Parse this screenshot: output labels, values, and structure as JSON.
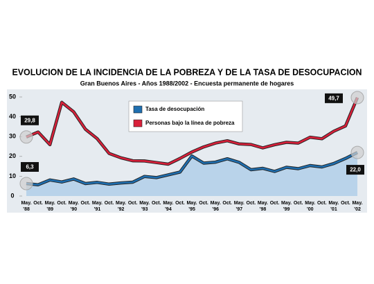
{
  "chart_data": {
    "type": "line",
    "title": "EVOLUCION DE LA INCIDENCIA DE LA POBREZA Y DE LA TASA DE DESOCUPACION",
    "subtitle": "Gran Buenos Aires - Años 1988/2002 - Encuesta permanente de hogares",
    "categories": [
      "May.",
      "Oct.",
      "May.",
      "Oct.",
      "May.",
      "Oct.",
      "May.",
      "Oct.",
      "May.",
      "Oct.",
      "May.",
      "Oct.",
      "May.",
      "Oct.",
      "May.",
      "Oct.",
      "May.",
      "Oct.",
      "May.",
      "Oct.",
      "May.",
      "Oct.",
      "May.",
      "Oct.",
      "May.",
      "Oct.",
      "May.",
      "Oct.",
      "May."
    ],
    "year_labels": [
      "’88",
      null,
      "’89",
      null,
      "’90",
      null,
      "’91",
      null,
      "’92",
      null,
      "’93",
      null,
      "’94",
      null,
      "’95",
      null,
      "’96",
      null,
      "’97",
      null,
      "’98",
      null,
      "’99",
      null,
      "’00",
      null,
      "’01",
      null,
      "’02"
    ],
    "series": [
      {
        "name": "Tasa de desocupación",
        "color": "#1f6fb0",
        "fill": "#b9d3ea",
        "values": [
          6.3,
          5.7,
          8.1,
          7.1,
          8.6,
          6.3,
          6.9,
          6.0,
          6.6,
          7.0,
          9.9,
          9.3,
          10.7,
          12.1,
          20.2,
          16.6,
          17.1,
          18.8,
          17.0,
          13.3,
          14.0,
          12.4,
          14.5,
          13.8,
          15.4,
          14.7,
          16.4,
          19.0,
          22.0
        ],
        "value_labels": [
          "6,3",
          null,
          null,
          null,
          null,
          null,
          null,
          null,
          null,
          null,
          null,
          null,
          null,
          null,
          null,
          null,
          null,
          null,
          null,
          null,
          null,
          null,
          null,
          null,
          null,
          null,
          null,
          null,
          "22,0"
        ]
      },
      {
        "name": "Personas bajo la línea de pobreza",
        "color": "#d9203a",
        "values": [
          29.8,
          32.3,
          25.9,
          47.3,
          42.5,
          33.7,
          28.9,
          21.5,
          19.3,
          17.8,
          17.7,
          16.9,
          16.1,
          19.0,
          22.2,
          24.8,
          26.7,
          27.9,
          26.3,
          26.0,
          24.3,
          25.9,
          27.1,
          26.7,
          29.7,
          28.9,
          32.7,
          35.4,
          49.7
        ],
        "value_labels": [
          "29,8",
          null,
          null,
          null,
          null,
          null,
          null,
          null,
          null,
          null,
          null,
          null,
          null,
          null,
          null,
          null,
          null,
          null,
          null,
          null,
          null,
          null,
          null,
          null,
          null,
          null,
          null,
          null,
          "49,7"
        ]
      }
    ],
    "ylim": [
      0,
      50
    ],
    "yticks": [
      0,
      10,
      20,
      30,
      40,
      50
    ]
  }
}
